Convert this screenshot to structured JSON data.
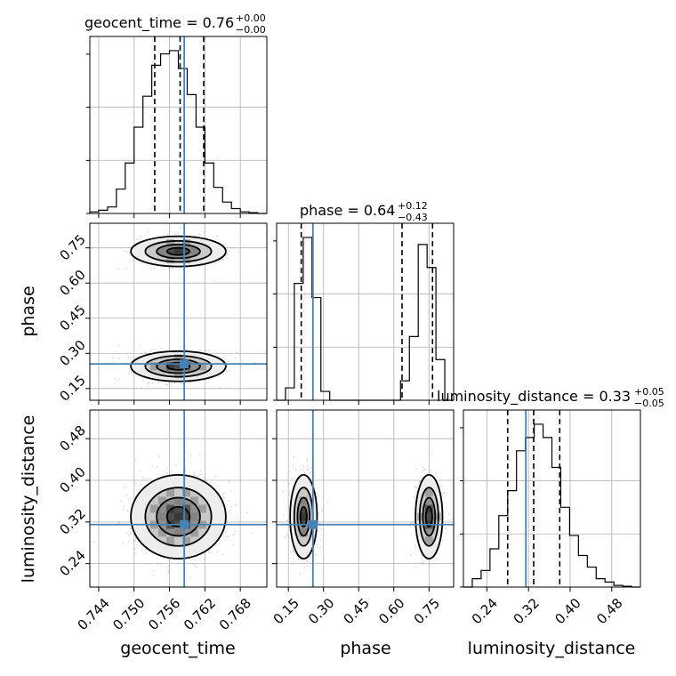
{
  "chart_data": {
    "type": "corner",
    "parameters": [
      "geocent_time",
      "phase",
      "luminosity_distance"
    ],
    "truth": {
      "geocent_time": 0.7585,
      "phase": 0.255,
      "luminosity_distance": 0.315
    },
    "grid": true,
    "colors": {
      "truth": "#4682b4",
      "hist": "#000000",
      "grid": "#b0b0b0"
    },
    "axes": {
      "geocent_time": {
        "label": "geocent_time",
        "range": [
          0.7425,
          0.7725
        ],
        "ticks": [
          0.744,
          0.75,
          0.756,
          0.762,
          0.768
        ],
        "tick_labels": [
          "0.744",
          "0.750",
          "0.756",
          "0.762",
          "0.768"
        ]
      },
      "phase": {
        "label": "phase",
        "range": [
          0.1,
          0.855
        ],
        "ticks": [
          0.15,
          0.3,
          0.45,
          0.6,
          0.75
        ],
        "tick_labels": [
          "0.15",
          "0.30",
          "0.45",
          "0.60",
          "0.75"
        ]
      },
      "luminosity_distance": {
        "label": "luminosity_distance",
        "range": [
          0.195,
          0.535
        ],
        "ticks": [
          0.24,
          0.32,
          0.4,
          0.48
        ],
        "tick_labels": [
          "0.24",
          "0.32",
          "0.40",
          "0.48"
        ]
      }
    },
    "titles": {
      "geocent_time": {
        "text": "geocent_time = 0.76",
        "sup": "+0.00",
        "sub": "−0.00"
      },
      "phase": {
        "text": "phase = 0.64",
        "sup": "+0.12",
        "sub": "−0.43"
      },
      "luminosity_distance": {
        "text": "luminosity_distance = 0.33",
        "sup": "+0.05",
        "sub": "−0.05"
      }
    },
    "quantiles": {
      "geocent_time": [
        0.7535,
        0.7578,
        0.7618
      ],
      "phase": [
        0.205,
        0.635,
        0.765
      ],
      "luminosity_distance": [
        0.28,
        0.33,
        0.38
      ]
    },
    "histograms": {
      "geocent_time": {
        "edges": [
          0.7425,
          0.744,
          0.7455,
          0.747,
          0.7485,
          0.75,
          0.7515,
          0.753,
          0.7545,
          0.756,
          0.7575,
          0.759,
          0.7605,
          0.762,
          0.7635,
          0.765,
          0.7665,
          0.768,
          0.7695,
          0.771,
          0.7725
        ],
        "counts": [
          0.01,
          0.02,
          0.04,
          0.15,
          0.31,
          0.53,
          0.72,
          0.91,
          0.98,
          1.0,
          0.89,
          0.73,
          0.53,
          0.31,
          0.16,
          0.07,
          0.03,
          0.01,
          0.005,
          0.0
        ]
      },
      "phase": {
        "edges": [
          0.1,
          0.1378,
          0.1755,
          0.2133,
          0.251,
          0.2888,
          0.3265,
          0.3643,
          0.402,
          0.4398,
          0.4775,
          0.5153,
          0.553,
          0.5908,
          0.6285,
          0.6663,
          0.704,
          0.7418,
          0.7795,
          0.8173,
          0.855
        ],
        "counts": [
          0.0,
          0.07,
          0.66,
          0.92,
          0.58,
          0.05,
          0.0,
          0.0,
          0.0,
          0.0,
          0.0,
          0.0,
          0.0,
          0.0,
          0.11,
          0.36,
          0.88,
          0.75,
          0.23,
          0.0
        ]
      },
      "luminosity_distance": {
        "edges": [
          0.195,
          0.212,
          0.229,
          0.246,
          0.263,
          0.28,
          0.297,
          0.314,
          0.331,
          0.348,
          0.365,
          0.382,
          0.399,
          0.416,
          0.433,
          0.45,
          0.467,
          0.484,
          0.501,
          0.518,
          0.535
        ],
        "counts": [
          0.0,
          0.05,
          0.1,
          0.23,
          0.43,
          0.58,
          0.82,
          0.9,
          0.98,
          0.9,
          0.72,
          0.48,
          0.31,
          0.19,
          0.12,
          0.05,
          0.03,
          0.01,
          0.005,
          0.0
        ]
      }
    },
    "modes_2d": {
      "phase_vs_geocent_time": [
        {
          "x": 0.7575,
          "y": 0.735,
          "sx": 0.0035,
          "sy": 0.028,
          "w": 0.45
        },
        {
          "x": 0.7575,
          "y": 0.245,
          "sx": 0.0035,
          "sy": 0.028,
          "w": 0.55
        }
      ],
      "luminosity_distance_vs_geocent_time": [
        {
          "x": 0.7575,
          "y": 0.33,
          "sx": 0.0035,
          "sy": 0.035,
          "w": 1.0
        }
      ],
      "luminosity_distance_vs_phase": [
        {
          "x": 0.215,
          "y": 0.33,
          "sx": 0.025,
          "sy": 0.035,
          "w": 0.55
        },
        {
          "x": 0.75,
          "y": 0.33,
          "sx": 0.025,
          "sy": 0.035,
          "w": 0.45
        }
      ]
    }
  }
}
